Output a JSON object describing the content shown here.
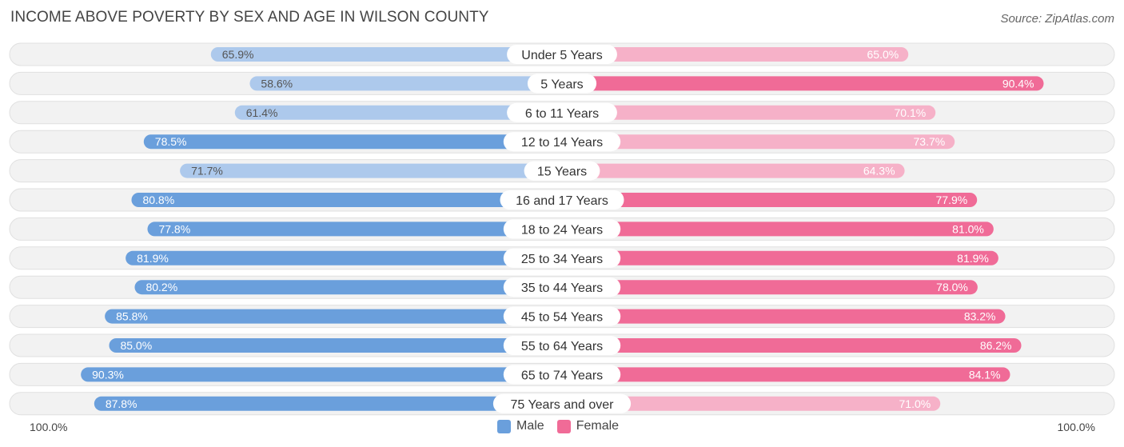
{
  "header": {
    "title": "INCOME ABOVE POVERTY BY SEX AND AGE IN WILSON COUNTY",
    "source": "Source: ZipAtlas.com"
  },
  "legend": {
    "male_label": "Male",
    "female_label": "Female"
  },
  "axis": {
    "left_label": "100.0%",
    "right_label": "100.0%"
  },
  "colors": {
    "male_light": "#adc9ec",
    "male_dark": "#6a9fdc",
    "female_light": "#f6b1c8",
    "female_dark": "#f06b97",
    "row_background": "#f0f0f0",
    "row_border": "#e0e0e0"
  },
  "chart_data": {
    "type": "bar",
    "orientation": "horizontal-diverging",
    "title": "INCOME ABOVE POVERTY BY SEX AND AGE IN WILSON COUNTY",
    "xlim": [
      0,
      100
    ],
    "unit": "%",
    "categories": [
      "Under 5 Years",
      "5 Years",
      "6 to 11 Years",
      "12 to 14 Years",
      "15 Years",
      "16 and 17 Years",
      "18 to 24 Years",
      "25 to 34 Years",
      "35 to 44 Years",
      "45 to 54 Years",
      "55 to 64 Years",
      "65 to 74 Years",
      "75 Years and over"
    ],
    "series": [
      {
        "name": "Male",
        "values": [
          65.9,
          58.6,
          61.4,
          78.5,
          71.7,
          80.8,
          77.8,
          81.9,
          80.2,
          85.8,
          85.0,
          90.3,
          87.8
        ]
      },
      {
        "name": "Female",
        "values": [
          65.0,
          90.4,
          70.1,
          73.7,
          64.3,
          77.9,
          81.0,
          81.9,
          78.0,
          83.2,
          86.2,
          84.1,
          71.0
        ]
      }
    ]
  }
}
